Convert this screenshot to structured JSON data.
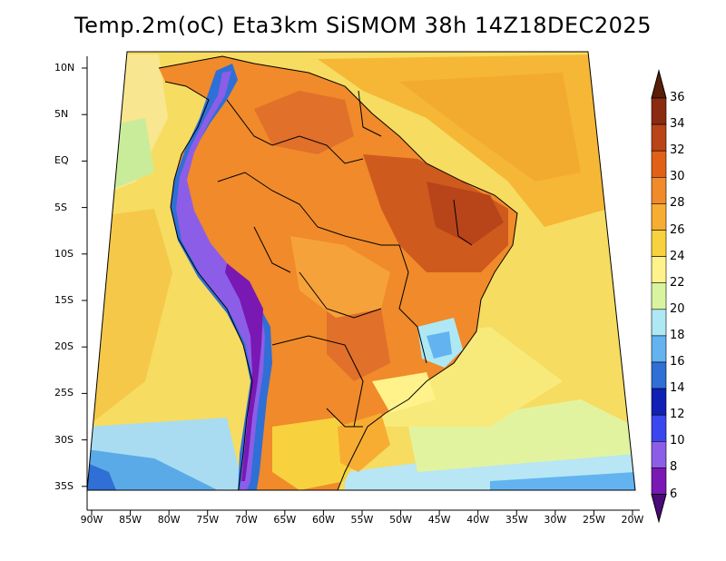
{
  "title": "Temp.2m(oC) Eta3km SiSMOM 38h 14Z18DEC2025",
  "lat_labels": [
    "10N",
    "5N",
    "EQ",
    "5S",
    "10S",
    "15S",
    "20S",
    "25S",
    "30S",
    "35S"
  ],
  "lon_labels": [
    "90W",
    "85W",
    "80W",
    "75W",
    "70W",
    "65W",
    "60W",
    "55W",
    "50W",
    "45W",
    "40W",
    "35W",
    "30W",
    "25W",
    "20W"
  ],
  "colorbar": {
    "labels": [
      "36",
      "34",
      "32",
      "30",
      "28",
      "26",
      "24",
      "22",
      "20",
      "18",
      "16",
      "14",
      "12",
      "10",
      "8",
      "6"
    ],
    "colors": [
      "#8a2a10",
      "#b84418",
      "#e06018",
      "#f08a2a",
      "#f7ad32",
      "#f7d23e",
      "#fff28a",
      "#d9f4a0",
      "#aee8f4",
      "#62b3f0",
      "#2f6fd6",
      "#1020b4",
      "#3a46f0",
      "#8c5ee8",
      "#7a18b4",
      "#5a0a8a"
    ],
    "top_arrow_color": "#5a1e08",
    "bottom_arrow_color": "#4a0a78"
  },
  "colors": {
    "ocean_background": "#f8e070",
    "frame": "#000000"
  }
}
